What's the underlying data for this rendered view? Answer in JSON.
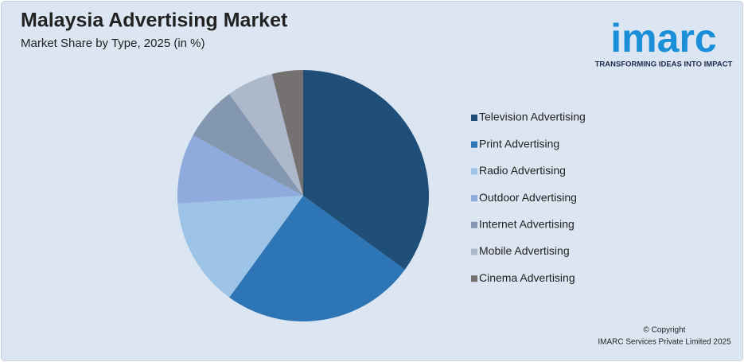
{
  "chart_data": {
    "type": "pie",
    "title": "Malaysia Advertising Market",
    "subtitle": "Market Share by Type, 2025 (in %)",
    "categories": [
      "Television Advertising",
      "Print Advertising",
      "Radio Advertising",
      "Outdoor Advertising",
      "Internet Advertising",
      "Mobile Advertising",
      "Cinema Advertising"
    ],
    "values": [
      35,
      25,
      14,
      9,
      7,
      6,
      4
    ],
    "colors": [
      "#1f4e79",
      "#2e75b6",
      "#9dc3e6",
      "#8faadc",
      "#8497b0",
      "#adb9ca",
      "#767171"
    ],
    "legend": "right"
  },
  "logo": {
    "name": "imarc",
    "tagline": "TRANSFORMING IDEAS INTO IMPACT"
  },
  "footer": {
    "copyright": "© Copyright",
    "company": "IMARC Services Private Limited 2025"
  }
}
